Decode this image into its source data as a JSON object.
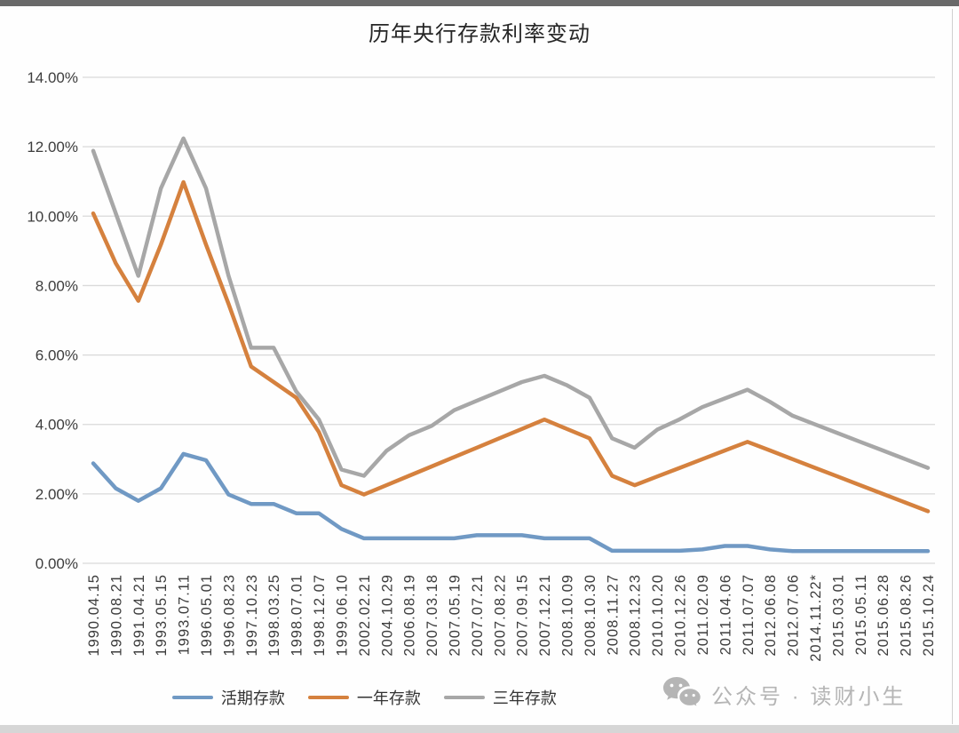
{
  "title": "历年央行存款利率变动",
  "chart_data": {
    "type": "line",
    "x_labels": [
      "1990.04.15",
      "1990.08.21",
      "1991.04.21",
      "1993.05.15",
      "1993.07.11",
      "1996.05.01",
      "1996.08.23",
      "1997.10.23",
      "1998.03.25",
      "1998.07.01",
      "1998.12.07",
      "1999.06.10",
      "2002.02.21",
      "2004.10.29",
      "2006.08.19",
      "2007.03.18",
      "2007.05.19",
      "2007.07.21",
      "2007.08.22",
      "2007.09.15",
      "2007.12.21",
      "2008.10.09",
      "2008.10.30",
      "2008.11.27",
      "2008.12.23",
      "2010.10.20",
      "2010.12.26",
      "2011.02.09",
      "2011.04.06",
      "2011.07.07",
      "2012.06.08",
      "2012.07.06",
      "2014.11.22*",
      "2015.03.01",
      "2015.05.11",
      "2015.06.28",
      "2015.08.26",
      "2015.10.24"
    ],
    "series": [
      {
        "name": "活期存款",
        "color": "#7099c4",
        "values": [
          2.88,
          2.16,
          1.8,
          2.16,
          3.15,
          2.97,
          1.98,
          1.71,
          1.71,
          1.44,
          1.44,
          0.99,
          0.72,
          0.72,
          0.72,
          0.72,
          0.72,
          0.81,
          0.81,
          0.81,
          0.72,
          0.72,
          0.72,
          0.36,
          0.36,
          0.36,
          0.36,
          0.4,
          0.5,
          0.5,
          0.4,
          0.35,
          0.35,
          0.35,
          0.35,
          0.35,
          0.35,
          0.35
        ]
      },
      {
        "name": "一年存款",
        "color": "#d5813e",
        "values": [
          10.08,
          8.64,
          7.56,
          9.18,
          10.98,
          9.18,
          7.47,
          5.67,
          5.22,
          4.77,
          3.78,
          2.25,
          1.98,
          2.25,
          2.52,
          2.79,
          3.06,
          3.33,
          3.6,
          3.87,
          4.14,
          3.87,
          3.6,
          2.52,
          2.25,
          2.5,
          2.75,
          3.0,
          3.25,
          3.5,
          3.25,
          3.0,
          2.75,
          2.5,
          2.25,
          2.0,
          1.75,
          1.5
        ]
      },
      {
        "name": "三年存款",
        "color": "#a7a7a7",
        "values": [
          11.88,
          10.08,
          8.28,
          10.8,
          12.24,
          10.8,
          8.28,
          6.21,
          6.21,
          4.95,
          4.14,
          2.7,
          2.52,
          3.24,
          3.69,
          3.96,
          4.41,
          4.68,
          4.95,
          5.22,
          5.4,
          5.13,
          4.77,
          3.6,
          3.33,
          3.85,
          4.15,
          4.5,
          4.75,
          5.0,
          4.65,
          4.25,
          4.0,
          3.75,
          3.5,
          3.25,
          3.0,
          2.75
        ]
      }
    ],
    "ylim": [
      0,
      14
    ],
    "y_ticks": [
      "14.00%",
      "12.00%",
      "10.00%",
      "8.00%",
      "6.00%",
      "4.00%",
      "2.00%",
      "0.00%"
    ],
    "grid": true,
    "legend_position": "bottom"
  },
  "watermark": {
    "text": "公众号 · 读财小生",
    "icon": "wechat-icon"
  },
  "colors": {
    "grid": "#d9d9d9",
    "axis_text": "#3d3d3d",
    "title_text": "#262626",
    "watermark": "#b5b5b5",
    "background": "#ffffff"
  }
}
